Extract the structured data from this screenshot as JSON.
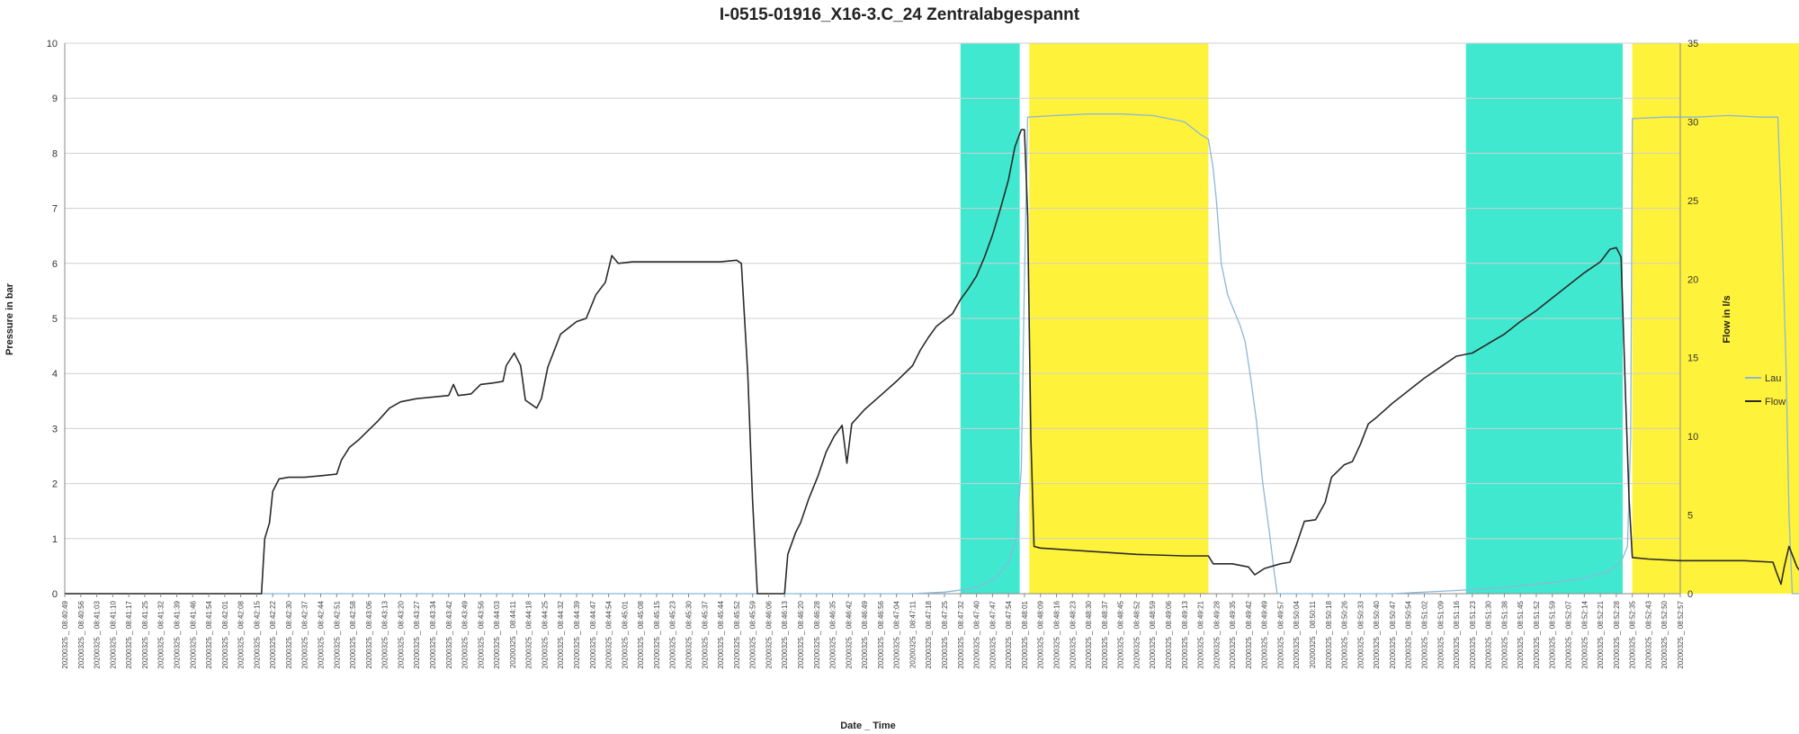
{
  "chart_data": {
    "type": "line",
    "title": "I-0515-01916_X16-3.C_24 Zentralabgespannt",
    "xlabel": "Date _ Time",
    "ylabel_left": "Pressure in bar",
    "ylabel_right": "Flow in l/s",
    "ylim_left": [
      0,
      10
    ],
    "ylim_right": [
      0,
      35
    ],
    "yticks_left": [
      "0",
      "1",
      "2",
      "3",
      "4",
      "5",
      "6",
      "7",
      "8",
      "9",
      "10"
    ],
    "yticks_right": [
      "0",
      "5",
      "10",
      "15",
      "20",
      "25",
      "30",
      "35"
    ],
    "grid": true,
    "legend_position": "right",
    "date_prefix": "20200325",
    "x_ticks": [
      "08:40:49",
      "08:40:56",
      "08:41:03",
      "08:41:10",
      "08:41:17",
      "08:41:25",
      "08:41:32",
      "08:41:39",
      "08:41:46",
      "08:41:54",
      "08:42:01",
      "08:42:08",
      "08:42:15",
      "08:42:22",
      "08:42:30",
      "08:42:37",
      "08:42:44",
      "08:42:51",
      "08:42:58",
      "08:43:06",
      "08:43:13",
      "08:43:20",
      "08:43:27",
      "08:43:34",
      "08:43:42",
      "08:43:49",
      "08:43:56",
      "08:44:03",
      "08:44:11",
      "08:44:18",
      "08:44:25",
      "08:44:32",
      "08:44:39",
      "08:44:47",
      "08:44:54",
      "08:45:01",
      "08:45:08",
      "08:45:15",
      "08:45:23",
      "08:45:30",
      "08:45:37",
      "08:45:44",
      "08:45:52",
      "08:45:59",
      "08:46:06",
      "08:46:13",
      "08:46:20",
      "08:46:28",
      "08:46:35",
      "08:46:42",
      "08:46:49",
      "08:46:56",
      "08:47:04",
      "08:47:11",
      "08:47:18",
      "08:47:25",
      "08:47:32",
      "08:47:40",
      "08:47:47",
      "08:47:54",
      "08:48:01",
      "08:48:09",
      "08:48:16",
      "08:48:23",
      "08:48:30",
      "08:48:37",
      "08:48:45",
      "08:48:52",
      "08:48:59",
      "08:49:06",
      "08:49:13",
      "08:49:21",
      "08:49:28",
      "08:49:35",
      "08:49:42",
      "08:49:49",
      "08:49:57",
      "08:50:04",
      "08:50:11",
      "08:50:18",
      "08:50:26",
      "08:50:33",
      "08:50:40",
      "08:50:47",
      "08:50:54",
      "08:51:02",
      "08:51:09",
      "08:51:16",
      "08:51:23",
      "08:51:30",
      "08:51:38",
      "08:51:45",
      "08:51:52",
      "08:51:59",
      "08:52:07",
      "08:52:14",
      "08:52:21",
      "08:52:28",
      "08:52:35",
      "08:52:43",
      "08:52:50",
      "08:52:57"
    ],
    "shaded_regions": [
      {
        "color": "#40e8d0",
        "x0": 56.0,
        "x1": 59.7
      },
      {
        "color": "#fff23a",
        "x0": 60.3,
        "x1": 71.5
      },
      {
        "color": "#40e8d0",
        "x0": 87.6,
        "x1": 97.4
      },
      {
        "color": "#fff23a",
        "x0": 98.0,
        "x1": 109.1
      }
    ],
    "series": [
      {
        "name": "Lau",
        "axis": "right",
        "color": "#8ab8d8",
        "points": [
          [
            0,
            0
          ],
          [
            53,
            0
          ],
          [
            55,
            0.1
          ],
          [
            56.5,
            0.3
          ],
          [
            57.5,
            0.6
          ],
          [
            58.3,
            1.1
          ],
          [
            59.0,
            2.0
          ],
          [
            59.5,
            3.5
          ],
          [
            59.8,
            8
          ],
          [
            60.0,
            20
          ],
          [
            60.2,
            30.3
          ],
          [
            62,
            30.4
          ],
          [
            64,
            30.5
          ],
          [
            66,
            30.5
          ],
          [
            68,
            30.4
          ],
          [
            70,
            30.0
          ],
          [
            71,
            29.2
          ],
          [
            71.5,
            28.9
          ],
          [
            71.8,
            27
          ],
          [
            72,
            25
          ],
          [
            72.3,
            21
          ],
          [
            72.7,
            19
          ],
          [
            73.1,
            18
          ],
          [
            73.5,
            17
          ],
          [
            73.8,
            16
          ],
          [
            74.1,
            14
          ],
          [
            74.5,
            11
          ],
          [
            74.9,
            7
          ],
          [
            75.3,
            4
          ],
          [
            75.6,
            1.5
          ],
          [
            75.8,
            0
          ],
          [
            83,
            0
          ],
          [
            87,
            0.2
          ],
          [
            90,
            0.4
          ],
          [
            93,
            0.7
          ],
          [
            95,
            1.0
          ],
          [
            96.5,
            1.4
          ],
          [
            97.3,
            2.0
          ],
          [
            97.7,
            3.0
          ],
          [
            97.9,
            10
          ],
          [
            98.0,
            30.2
          ],
          [
            100,
            30.3
          ],
          [
            102,
            30.3
          ],
          [
            104,
            30.4
          ],
          [
            106,
            30.3
          ],
          [
            107.1,
            30.3
          ],
          [
            107.3,
            25
          ],
          [
            107.6,
            15
          ],
          [
            107.8,
            5
          ],
          [
            108.0,
            0
          ],
          [
            112,
            0
          ]
        ]
      },
      {
        "name": "Flow",
        "axis": "right",
        "color": "#2a2a2a",
        "points": [
          [
            0,
            0
          ],
          [
            12.3,
            0
          ],
          [
            12.5,
            3.5
          ],
          [
            12.8,
            4.5
          ],
          [
            13,
            6.5
          ],
          [
            13.4,
            7.3
          ],
          [
            14,
            7.4
          ],
          [
            15,
            7.4
          ],
          [
            16,
            7.5
          ],
          [
            17,
            7.6
          ],
          [
            17.3,
            8.5
          ],
          [
            17.8,
            9.3
          ],
          [
            18.4,
            9.8
          ],
          [
            19,
            10.4
          ],
          [
            19.6,
            11.0
          ],
          [
            20.3,
            11.8
          ],
          [
            21.0,
            12.2
          ],
          [
            22,
            12.4
          ],
          [
            23,
            12.5
          ],
          [
            24,
            12.6
          ],
          [
            24.3,
            13.3
          ],
          [
            24.6,
            12.6
          ],
          [
            25.4,
            12.7
          ],
          [
            26,
            13.3
          ],
          [
            26.8,
            13.4
          ],
          [
            27.4,
            13.5
          ],
          [
            27.6,
            14.5
          ],
          [
            28.1,
            15.3
          ],
          [
            28.5,
            14.5
          ],
          [
            28.8,
            12.3
          ],
          [
            29.5,
            11.8
          ],
          [
            29.8,
            12.4
          ],
          [
            30.2,
            14.4
          ],
          [
            31,
            16.5
          ],
          [
            32,
            17.3
          ],
          [
            32.6,
            17.5
          ],
          [
            33.2,
            19.0
          ],
          [
            33.8,
            19.8
          ],
          [
            34.2,
            21.5
          ],
          [
            34.6,
            21.0
          ],
          [
            35.5,
            21.1
          ],
          [
            37,
            21.1
          ],
          [
            39,
            21.1
          ],
          [
            41,
            21.1
          ],
          [
            42,
            21.2
          ],
          [
            42.3,
            21.0
          ],
          [
            42.7,
            14
          ],
          [
            43.0,
            6
          ],
          [
            43.3,
            0
          ],
          [
            45.0,
            0
          ],
          [
            45.2,
            2.5
          ],
          [
            45.7,
            3.9
          ],
          [
            46.0,
            4.5
          ],
          [
            46.5,
            6.0
          ],
          [
            47.1,
            7.5
          ],
          [
            47.6,
            9.0
          ],
          [
            48.1,
            10.0
          ],
          [
            48.6,
            10.7
          ],
          [
            48.9,
            8.3
          ],
          [
            49.2,
            10.8
          ],
          [
            50,
            11.7
          ],
          [
            51,
            12.6
          ],
          [
            52,
            13.5
          ],
          [
            53,
            14.5
          ],
          [
            53.5,
            15.5
          ],
          [
            54.0,
            16.3
          ],
          [
            54.5,
            17.0
          ],
          [
            55,
            17.4
          ],
          [
            55.5,
            17.8
          ],
          [
            56.0,
            18.7
          ],
          [
            56.5,
            19.4
          ],
          [
            57,
            20.2
          ],
          [
            57.5,
            21.4
          ],
          [
            58,
            22.8
          ],
          [
            58.5,
            24.5
          ],
          [
            59.0,
            26.3
          ],
          [
            59.4,
            28.4
          ],
          [
            59.8,
            29.5
          ],
          [
            60.0,
            29.5
          ],
          [
            60.2,
            24
          ],
          [
            60.4,
            10
          ],
          [
            60.6,
            3.0
          ],
          [
            61,
            2.9
          ],
          [
            64,
            2.7
          ],
          [
            67,
            2.5
          ],
          [
            70,
            2.4
          ],
          [
            71.5,
            2.4
          ],
          [
            71.8,
            1.9
          ],
          [
            73,
            1.9
          ],
          [
            74,
            1.7
          ],
          [
            74.4,
            1.2
          ],
          [
            75,
            1.6
          ],
          [
            76,
            1.9
          ],
          [
            76.6,
            2.0
          ],
          [
            77.0,
            3.1
          ],
          [
            77.5,
            4.6
          ],
          [
            78.2,
            4.7
          ],
          [
            78.8,
            5.8
          ],
          [
            79.2,
            7.4
          ],
          [
            80,
            8.2
          ],
          [
            80.5,
            8.4
          ],
          [
            81,
            9.5
          ],
          [
            81.5,
            10.8
          ],
          [
            82,
            11.2
          ],
          [
            83,
            12.1
          ],
          [
            84,
            12.9
          ],
          [
            85,
            13.7
          ],
          [
            86,
            14.4
          ],
          [
            87,
            15.1
          ],
          [
            88,
            15.3
          ],
          [
            89,
            15.9
          ],
          [
            90,
            16.5
          ],
          [
            91,
            17.3
          ],
          [
            92,
            18.0
          ],
          [
            93,
            18.8
          ],
          [
            94,
            19.6
          ],
          [
            95,
            20.4
          ],
          [
            96,
            21.1
          ],
          [
            96.6,
            21.9
          ],
          [
            97.0,
            22.0
          ],
          [
            97.3,
            21.4
          ],
          [
            97.6,
            12
          ],
          [
            97.8,
            6
          ],
          [
            98.0,
            2.3
          ],
          [
            99,
            2.2
          ],
          [
            101,
            2.1
          ],
          [
            103,
            2.1
          ],
          [
            105,
            2.1
          ],
          [
            106.8,
            2.0
          ],
          [
            107.0,
            1.4
          ],
          [
            107.3,
            0.6
          ],
          [
            107.5,
            1.7
          ],
          [
            107.8,
            3.0
          ],
          [
            108.3,
            1.7
          ],
          [
            108.8,
            1.0
          ],
          [
            109.1,
            0.3
          ],
          [
            109.5,
            0.1
          ],
          [
            110,
            0
          ],
          [
            112,
            0
          ]
        ]
      }
    ]
  }
}
